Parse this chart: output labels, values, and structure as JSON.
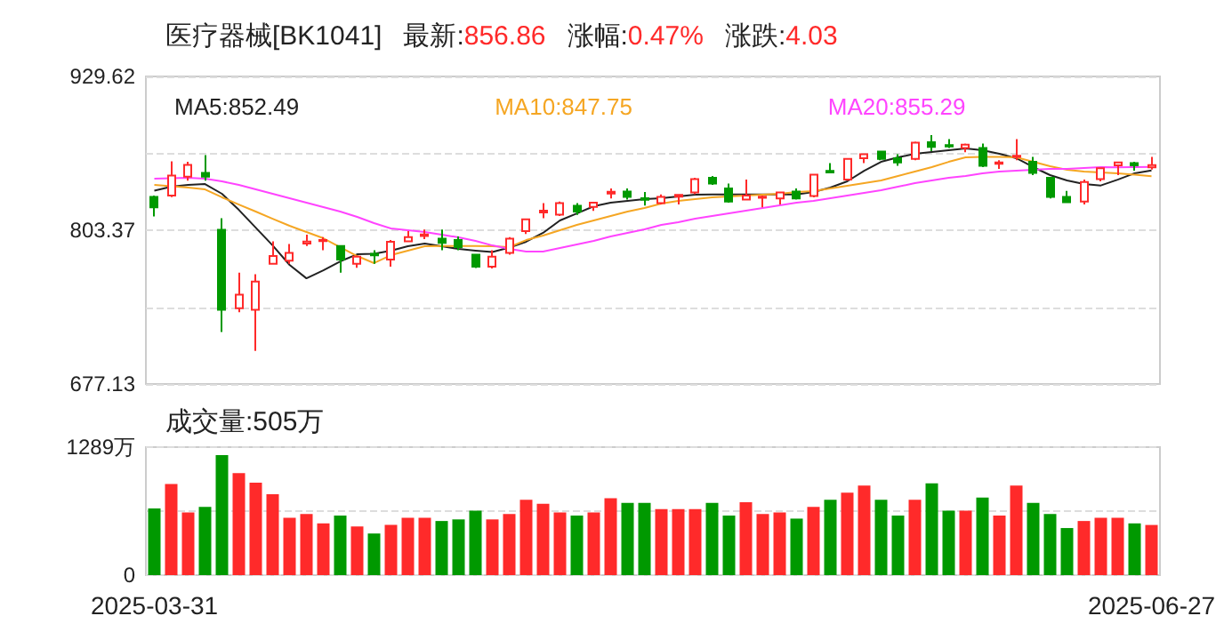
{
  "chart_data": [
    {
      "type": "candlestick",
      "title": "医疗器械[BK1041]",
      "annotations": [
        "最新:856.86",
        "涨幅:0.47%",
        "涨跌:4.03"
      ],
      "categories": [
        null,
        null,
        null,
        null,
        null,
        null,
        null,
        null,
        null,
        null,
        null,
        null,
        null,
        null,
        null,
        null,
        null,
        null,
        null,
        null,
        null,
        null,
        null,
        null,
        null,
        null,
        null,
        null,
        null,
        null,
        null,
        null,
        null,
        null,
        null,
        null,
        null,
        null,
        null,
        null,
        null,
        null,
        null,
        null,
        null,
        null,
        null,
        null,
        null,
        null,
        null,
        null,
        null,
        null,
        null,
        null,
        null,
        null,
        null,
        null
      ],
      "series": [
        {
          "ohlc": [
            [
              830.8,
              831.8,
              814.7,
              822.1
            ],
            [
              831.8,
              860.0,
              830.5,
              848.3
            ],
            [
              847.4,
              859.6,
              844.0,
              857.1
            ],
            [
              850.4,
              865.0,
              844.0,
              847.4
            ],
            [
              803.7,
              813.3,
              719.9,
              738.0
            ],
            [
              739.4,
              768.6,
              736.0,
              750.5
            ],
            [
              738.0,
              767.2,
              704.4,
              761.3
            ],
            [
              775.9,
              794.3,
              775.9,
              782.2
            ],
            [
              778.3,
              792.0,
              775.9,
              784.7
            ],
            [
              792.5,
              799.7,
              790.5,
              794.0
            ],
            [
              794.5,
              797.8,
              787.0,
              795.3
            ],
            [
              790.5,
              790.5,
              768.6,
              779.3
            ],
            [
              775.9,
              782.5,
              772.5,
              781.7
            ],
            [
              784.0,
              787.0,
              775.9,
              782.7
            ],
            [
              779.3,
              795.3,
              773.4,
              793.9
            ],
            [
              794.3,
              802.6,
              794.3,
              797.8
            ],
            [
              798.6,
              804.0,
              796.0,
              800.0
            ],
            [
              796.4,
              804.0,
              787.0,
              792.9
            ],
            [
              795.3,
              798.2,
              787.0,
              789.5
            ],
            [
              783.3,
              783.3,
              772.4,
              773.4
            ],
            [
              773.4,
              787.0,
              772.0,
              781.7
            ],
            [
              784.7,
              797.8,
              783.3,
              796.4
            ],
            [
              802.6,
              812.4,
              800.2,
              812.4
            ],
            [
              818.0,
              825.6,
              813.3,
              819.5
            ],
            [
              816.2,
              827.0,
              815.0,
              825.6
            ],
            [
              823.5,
              825.6,
              815.9,
              818.7
            ],
            [
              822.6,
              826.0,
              819.2,
              826.0
            ],
            [
              833.5,
              837.7,
              829.4,
              835.0
            ],
            [
              835.2,
              837.7,
              828.5,
              830.8
            ],
            [
              829.6,
              834.7,
              823.6,
              828.3
            ],
            [
              825.6,
              832.7,
              824.6,
              830.8
            ],
            [
              831.0,
              832.7,
              824.6,
              832.3
            ],
            [
              834.3,
              846.4,
              833.0,
              845.4
            ],
            [
              846.4,
              847.9,
              840.6,
              841.6
            ],
            [
              837.7,
              841.6,
              826.0,
              827.0
            ],
            [
              828.5,
              845.0,
              828.5,
              831.8
            ],
            [
              830.0,
              831.8,
              822.1,
              831.0
            ],
            [
              829.4,
              834.3,
              824.6,
              834.3
            ],
            [
              835.2,
              837.7,
              828.5,
              829.4
            ],
            [
              831.4,
              849.4,
              830.4,
              848.9
            ],
            [
              852.0,
              858.5,
              850.4,
              850.8
            ],
            [
              845.0,
              862.0,
              844.0,
              862.0
            ],
            [
              862.5,
              865.8,
              858.5,
              865.8
            ],
            [
              867.9,
              868.3,
              860.9,
              862.0
            ],
            [
              862.5,
              865.8,
              856.2,
              859.1
            ],
            [
              862.0,
              876.1,
              860.9,
              875.2
            ],
            [
              875.6,
              881.4,
              868.3,
              871.7
            ],
            [
              873.2,
              878.1,
              870.8,
              872.2
            ],
            [
              870.8,
              874.5,
              867.5,
              873.7
            ],
            [
              870.8,
              874.6,
              855.2,
              856.2
            ],
            [
              858.0,
              860.9,
              853.7,
              859.0
            ],
            [
              863.5,
              878.1,
              860.9,
              864.5
            ],
            [
              859.6,
              863.5,
              848.6,
              850.4
            ],
            [
              846.4,
              846.4,
              829.4,
              830.8
            ],
            [
              830.8,
              835.7,
              825.6,
              826.4
            ],
            [
              826.9,
              845.0,
              824.6,
              843.0
            ],
            [
              845.4,
              854.2,
              843.5,
              854.2
            ],
            [
              856.6,
              859.1,
              848.6,
              859.1
            ],
            [
              858.5,
              859.6,
              852.2,
              856.6
            ],
            [
              855.0,
              863.5,
              853.2,
              856.86
            ]
          ]
        },
        {
          "type": "line",
          "name": "MA5:852.49",
          "color": "#222222",
          "values": [
            835.8,
            839.1,
            840.6,
            841.3,
            833.3,
            820.1,
            805.5,
            790.9,
            774.9,
            763.9,
            770.5,
            777.8,
            783.6,
            784.1,
            786.6,
            790.2,
            792.4,
            790.2,
            788.0,
            786.6,
            785.5,
            789.1,
            793.9,
            801.2,
            811.4,
            817.2,
            823.1,
            826.0,
            827.4,
            828.9,
            829.6,
            831.1,
            832.5,
            832.8,
            832.8,
            832.8,
            832.8,
            832.8,
            832.8,
            834.7,
            838.4,
            843.5,
            852.2,
            859.5,
            863.2,
            866.1,
            867.6,
            869.0,
            870.5,
            869.0,
            866.1,
            862.5,
            855.2,
            848.6,
            844.2,
            841.3,
            840.1,
            844.9,
            850.1,
            852.49
          ]
        },
        {
          "type": "line",
          "name": "MA10:847.75",
          "color": "#f5a623",
          "values": [
            840.6,
            839.5,
            838.4,
            836.9,
            830.4,
            824.5,
            818.7,
            812.8,
            807.0,
            801.9,
            796.8,
            789.5,
            782.2,
            776.4,
            782.9,
            786.6,
            790.2,
            790.5,
            790.5,
            790.5,
            790.2,
            789.5,
            795.3,
            799.0,
            803.4,
            807.7,
            811.4,
            815.0,
            818.7,
            821.6,
            825.2,
            827.4,
            828.9,
            830.4,
            831.1,
            831.8,
            832.5,
            833.3,
            834.7,
            835.5,
            837.7,
            839.8,
            842.0,
            844.2,
            847.9,
            851.5,
            855.2,
            859.5,
            863.2,
            863.5,
            863.5,
            863.2,
            859.5,
            855.9,
            853.0,
            851.5,
            850.8,
            850.1,
            848.9,
            847.75
          ]
        },
        {
          "type": "line",
          "name": "MA20:855.29",
          "color": "#ff44ff",
          "values": [
            845.7,
            846.0,
            846.4,
            845.7,
            843.5,
            840.6,
            836.9,
            833.3,
            829.6,
            826.0,
            822.3,
            818.7,
            814.3,
            809.2,
            804.8,
            803.4,
            801.9,
            799.7,
            797.5,
            794.6,
            790.9,
            788.0,
            785.8,
            785.8,
            788.8,
            791.7,
            794.6,
            798.2,
            801.2,
            804.1,
            807.7,
            809.9,
            812.8,
            815.0,
            817.2,
            819.4,
            821.6,
            823.8,
            826.0,
            827.4,
            829.6,
            831.8,
            834.0,
            836.2,
            839.1,
            842.0,
            844.2,
            846.4,
            847.9,
            850.1,
            851.5,
            852.2,
            853.0,
            853.7,
            853.7,
            854.4,
            855.2,
            855.0,
            855.2,
            855.29
          ]
        }
      ],
      "ylim": [
        677.13,
        929.62
      ],
      "yticks": [
        677.13,
        {
          "value": 740.25,
          "label": null
        },
        803.37,
        {
          "value": 866.5,
          "label": null
        },
        929.62
      ],
      "grid": "y",
      "legend": "top",
      "marker": "none",
      "tick_labels": "y"
    },
    {
      "type": "bar",
      "title": "成交量:505万",
      "categories": [
        "2025-03-31",
        null,
        null,
        null,
        null,
        null,
        null,
        null,
        null,
        null,
        null,
        null,
        null,
        null,
        null,
        null,
        null,
        null,
        null,
        null,
        null,
        null,
        null,
        null,
        null,
        null,
        null,
        null,
        null,
        null,
        null,
        null,
        null,
        null,
        null,
        null,
        null,
        null,
        null,
        null,
        null,
        null,
        null,
        null,
        null,
        null,
        null,
        null,
        null,
        null,
        null,
        null,
        null,
        null,
        null,
        null,
        null,
        null,
        null,
        "2025-06-27"
      ],
      "values": [
        672,
        917,
        632,
        688,
        1209,
        1028,
        932,
        814,
        577,
        616,
        521,
        600,
        490,
        419,
        506,
        577,
        577,
        545,
        561,
        648,
        561,
        616,
        758,
        719,
        632,
        600,
        632,
        774,
        727,
        727,
        664,
        664,
        664,
        727,
        600,
        735,
        616,
        632,
        569,
        688,
        758,
        830,
        901,
        758,
        600,
        758,
        924,
        648,
        648,
        782,
        600,
        901,
        727,
        616,
        474,
        545,
        577,
        577,
        521,
        505
      ],
      "colors": [
        "#009900",
        "#ff2a2a",
        "#ff2a2a",
        "#009900",
        "#009900",
        "#ff2a2a",
        "#ff2a2a",
        "#ff2a2a",
        "#ff2a2a",
        "#ff2a2a",
        "#ff2a2a",
        "#009900",
        "#ff2a2a",
        "#009900",
        "#ff2a2a",
        "#ff2a2a",
        "#ff2a2a",
        "#009900",
        "#009900",
        "#009900",
        "#ff2a2a",
        "#ff2a2a",
        "#ff2a2a",
        "#ff2a2a",
        "#ff2a2a",
        "#009900",
        "#ff2a2a",
        "#ff2a2a",
        "#009900",
        "#009900",
        "#ff2a2a",
        "#ff2a2a",
        "#ff2a2a",
        "#009900",
        "#009900",
        "#ff2a2a",
        "#ff2a2a",
        "#ff2a2a",
        "#009900",
        "#ff2a2a",
        "#009900",
        "#ff2a2a",
        "#ff2a2a",
        "#009900",
        "#009900",
        "#ff2a2a",
        "#009900",
        "#009900",
        "#ff2a2a",
        "#009900",
        "#ff2a2a",
        "#ff2a2a",
        "#009900",
        "#009900",
        "#009900",
        "#ff2a2a",
        "#ff2a2a",
        "#ff2a2a",
        "#009900",
        "#ff2a2a"
      ],
      "ylim": [
        0,
        1289
      ],
      "yticks": [
        0,
        {
          "value": 644.5,
          "label": null
        },
        {
          "value": 1289,
          "label": "1289万"
        }
      ],
      "grid": "y"
    }
  ]
}
